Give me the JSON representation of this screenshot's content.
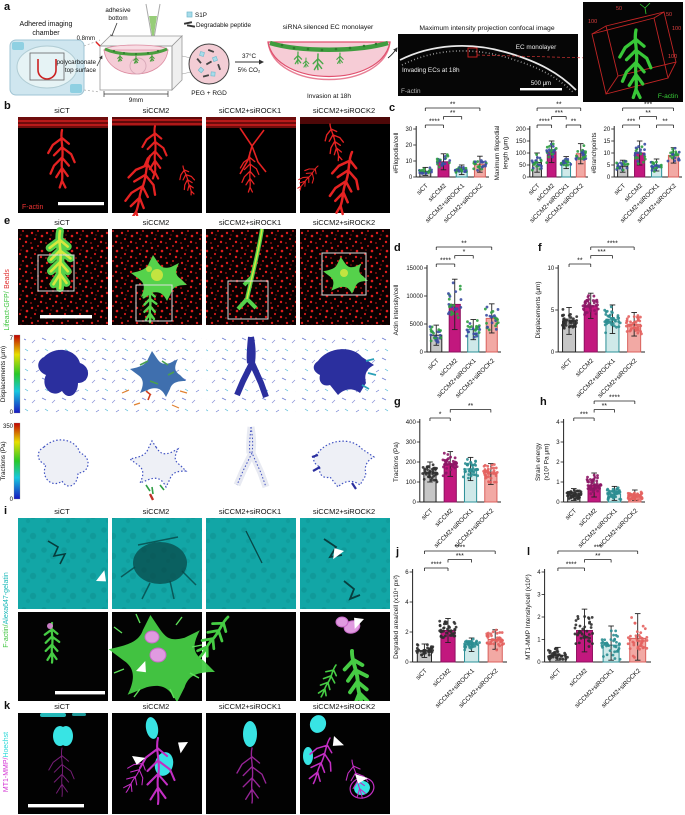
{
  "conditions": [
    "siCT",
    "siCCM2",
    "siCCM2+siROCK1",
    "siCCM2+siROCK2"
  ],
  "panel_letters": {
    "a": "a",
    "b": "b",
    "c": "c",
    "d": "d",
    "e": "e",
    "f": "f",
    "g": "g",
    "h": "h",
    "i": "i",
    "j": "j",
    "k": "k",
    "l": "l"
  },
  "style": {
    "bar_colors": [
      "#c6c6c6",
      "#c2187e",
      "#cfe9e9",
      "#f2a9a4"
    ],
    "bar_borders": [
      "#222222",
      "#8f1160",
      "#2a8f96",
      "#d9605c"
    ],
    "mixed_dot_colors": [
      "#2f9e44",
      "#3b4ea3"
    ],
    "group_dot_colors": [
      "#2f2f2f",
      "#8d1766",
      "#2c8e92",
      "#e4625f"
    ]
  },
  "panels": {
    "a": {
      "chamber_line1": "Adhered imaging",
      "chamber_line2": "chamber",
      "adhesive_line1": "adhesive",
      "adhesive_line2": "bottom",
      "thickness": "0.8mm",
      "poly_line1": "polycarbonate",
      "poly_line2": "top surface",
      "width_label": "9mm",
      "legend_s1p": "S1P",
      "legend_peptide": "Degradable peptide",
      "peg_rgd": "PEG + RGD",
      "temp": "37°C",
      "co2": "5% CO₂",
      "monolayer_caption": "siRNA silenced EC monolayer",
      "invasion_caption": "Invasion at 18h",
      "mip_caption": "Maximum intensity projection confocal image",
      "ec_monolayer": "EC monolayer",
      "invading": "Invading ECs at 18h",
      "factin": "F-actin",
      "scalebar_text": "500 μm",
      "cube": {
        "t1": "50",
        "t2": "100",
        "t3": "50",
        "t4": "100",
        "t5": "100",
        "factin": "F-actin"
      }
    },
    "b": {
      "stain": "F-actin"
    },
    "e": {
      "stain_left": "Lifeact-GFP/",
      "stain_right": "Beads",
      "colorbar_displacements": {
        "label": "Displacements (μm)",
        "max": "7",
        "min": "0"
      },
      "colorbar_tractions": {
        "label": "Tractions (Pa)",
        "max": "350",
        "min": "0"
      }
    },
    "i": {
      "stain_left": "F-actin/",
      "stain_right": "Alexa647-gelatin"
    },
    "k": {
      "stain_left": "MT1-MMP/",
      "stain_right": "Hoechst"
    }
  },
  "chart_data": [
    {
      "type": "bar",
      "name": "filopodia-per-cell",
      "categories": [
        "siCT",
        "siCCM2",
        "siCCM2+siROCK1",
        "siCCM2+siROCK2"
      ],
      "values": [
        3.5,
        9.5,
        4.5,
        8
      ],
      "errors": [
        2.5,
        5,
        3,
        5
      ],
      "ylim": [
        0,
        30
      ],
      "yticks": [
        0,
        10,
        20,
        30
      ],
      "ylabel_lines": [
        "#Filopodia/cell"
      ],
      "dot_colors": [
        [
          "#2f9e44",
          "#3b4ea3"
        ],
        [
          "#2f9e44",
          "#3b4ea3"
        ],
        [
          "#2f9e44",
          "#3b4ea3"
        ],
        [
          "#2f9e44",
          "#3b4ea3"
        ]
      ],
      "ndots": 22,
      "sig": [
        {
          "a": 0,
          "b": 1,
          "label": "****",
          "level": 0
        },
        {
          "a": 1,
          "b": 2,
          "label": "**",
          "level": 1
        },
        {
          "a": 0,
          "b": 3,
          "label": "**",
          "level": 2
        }
      ]
    },
    {
      "type": "bar",
      "name": "max-filopodial-length",
      "categories": [
        "siCT",
        "siCCM2",
        "siCCM2+siROCK1",
        "siCCM2+siROCK2"
      ],
      "values": [
        60,
        105,
        60,
        97
      ],
      "errors": [
        40,
        45,
        25,
        42
      ],
      "ylim": [
        0,
        200
      ],
      "yticks": [
        0,
        50,
        100,
        150,
        200
      ],
      "ylabel_lines": [
        "Maximum filopodial",
        "length (μm)"
      ],
      "dot_colors": [
        [
          "#2f9e44",
          "#3b4ea3"
        ],
        [
          "#2f9e44",
          "#3b4ea3"
        ],
        [
          "#2f9e44",
          "#3b4ea3"
        ],
        [
          "#2f9e44",
          "#3b4ea3"
        ]
      ],
      "ndots": 24,
      "sig": [
        {
          "a": 0,
          "b": 1,
          "label": "****",
          "level": 0
        },
        {
          "a": 1,
          "b": 2,
          "label": "***",
          "level": 1
        },
        {
          "a": 2,
          "b": 3,
          "label": "**",
          "level": 0
        },
        {
          "a": 0,
          "b": 3,
          "label": "**",
          "level": 2
        }
      ]
    },
    {
      "type": "bar",
      "name": "branchpoints",
      "categories": [
        "siCT",
        "siCCM2",
        "siCCM2+siROCK1",
        "siCCM2+siROCK2"
      ],
      "values": [
        4.5,
        10,
        5,
        9
      ],
      "errors": [
        2.5,
        5,
        2.5,
        3.2
      ],
      "ylim": [
        0,
        20
      ],
      "yticks": [
        0,
        5,
        10,
        15,
        20
      ],
      "ylabel_lines": [
        "#Branchpoints"
      ],
      "dot_colors": [
        [
          "#2f9e44",
          "#3b4ea3"
        ],
        [
          "#2f9e44",
          "#3b4ea3"
        ],
        [
          "#2f9e44",
          "#3b4ea3"
        ],
        [
          "#2f9e44",
          "#3b4ea3"
        ]
      ],
      "ndots": 22,
      "sig": [
        {
          "a": 0,
          "b": 1,
          "label": "***",
          "level": 0
        },
        {
          "a": 1,
          "b": 2,
          "label": "**",
          "level": 1
        },
        {
          "a": 2,
          "b": 3,
          "label": "**",
          "level": 0
        },
        {
          "a": 0,
          "b": 3,
          "label": "***",
          "level": 2
        }
      ]
    },
    {
      "type": "bar",
      "name": "actin-intensity",
      "categories": [
        "siCT",
        "siCCM2",
        "siCCM2+siROCK1",
        "siCCM2+siROCK2"
      ],
      "values": [
        3000,
        8500,
        4000,
        6000
      ],
      "errors": [
        1800,
        4500,
        1800,
        2600
      ],
      "ylim": [
        0,
        15000
      ],
      "yticks": [
        0,
        5000,
        10000,
        15000
      ],
      "ylabel_lines": [
        "Actin intensity/cell"
      ],
      "dot_colors": [
        [
          "#2f9e44",
          "#3b4ea3"
        ],
        [
          "#2f9e44",
          "#3b4ea3"
        ],
        [
          "#2f9e44",
          "#3b4ea3"
        ],
        [
          "#2f9e44",
          "#3b4ea3"
        ]
      ],
      "ndots": 26,
      "sig": [
        {
          "a": 0,
          "b": 1,
          "label": "****",
          "level": 0
        },
        {
          "a": 1,
          "b": 2,
          "label": "*",
          "level": 1
        },
        {
          "a": 0,
          "b": 3,
          "label": "**",
          "level": 2
        }
      ]
    },
    {
      "type": "bar",
      "name": "displacements",
      "categories": [
        "siCT",
        "siCCM2",
        "siCCM2+siROCK1",
        "siCCM2+siROCK2"
      ],
      "values": [
        3.7,
        5.5,
        3.9,
        3.3
      ],
      "errors": [
        1.6,
        1.5,
        1.7,
        1.4
      ],
      "ylim": [
        0,
        10
      ],
      "yticks": [
        0,
        5,
        10
      ],
      "ylabel_lines": [
        "Displacements (μm)"
      ],
      "dot_colors": [
        "#2f2f2f",
        "#8d1766",
        "#2c8e92",
        "#e4625f"
      ],
      "ndots": 40,
      "sig": [
        {
          "a": 0,
          "b": 1,
          "label": "**",
          "level": 0
        },
        {
          "a": 1,
          "b": 2,
          "label": "***",
          "level": 1
        },
        {
          "a": 1,
          "b": 3,
          "label": "****",
          "level": 2
        }
      ]
    },
    {
      "type": "bar",
      "name": "tractions",
      "categories": [
        "siCT",
        "siCCM2",
        "siCCM2+siROCK1",
        "siCCM2+siROCK2"
      ],
      "values": [
        150,
        190,
        165,
        140
      ],
      "errors": [
        50,
        62,
        58,
        52
      ],
      "ylim": [
        0,
        400
      ],
      "yticks": [
        0,
        100,
        200,
        300,
        400
      ],
      "ylabel_lines": [
        "Tractions (Pa)"
      ],
      "dot_colors": [
        "#2f2f2f",
        "#8d1766",
        "#2c8e92",
        "#e4625f"
      ],
      "ndots": 40,
      "sig": [
        {
          "a": 0,
          "b": 1,
          "label": "*",
          "level": 0
        },
        {
          "a": 1,
          "b": 3,
          "label": "**",
          "level": 1
        }
      ]
    },
    {
      "type": "bar",
      "name": "strain-energy",
      "categories": [
        "siCT",
        "siCCM2",
        "siCCM2+siROCK1",
        "siCCM2+siROCK2"
      ],
      "values": [
        0.35,
        0.85,
        0.4,
        0.3
      ],
      "errors": [
        0.32,
        0.6,
        0.38,
        0.3
      ],
      "ylim": [
        0,
        4
      ],
      "yticks": [
        0,
        1,
        2,
        3,
        4
      ],
      "ylabel_lines": [
        "Strain energy",
        "(x10³ Pa μm)"
      ],
      "dot_colors": [
        "#2f2f2f",
        "#8d1766",
        "#2c8e92",
        "#e4625f"
      ],
      "ndots": 45,
      "sig": [
        {
          "a": 0,
          "b": 1,
          "label": "***",
          "level": 0
        },
        {
          "a": 1,
          "b": 2,
          "label": "**",
          "level": 1
        },
        {
          "a": 1,
          "b": 3,
          "label": "****",
          "level": 2
        }
      ]
    },
    {
      "type": "bar",
      "name": "degraded-area",
      "categories": [
        "siCT",
        "siCCM2",
        "siCCM2+siROCK1",
        "siCCM2+siROCK2"
      ],
      "values": [
        0.75,
        2.1,
        1.15,
        1.5
      ],
      "errors": [
        0.45,
        0.8,
        0.45,
        0.65
      ],
      "ylim": [
        0,
        6
      ],
      "yticks": [
        0,
        2,
        4,
        6
      ],
      "ylabel_lines": [
        "Degraded area/cell (x10⁴ px²)"
      ],
      "dot_colors": [
        "#2f2f2f",
        "#2f2f2f",
        "#2c8e92",
        "#e4625f"
      ],
      "ndots": 40,
      "sig": [
        {
          "a": 0,
          "b": 1,
          "label": "****",
          "level": 0
        },
        {
          "a": 1,
          "b": 2,
          "label": "***",
          "level": 1
        },
        {
          "a": 0,
          "b": 3,
          "label": "****",
          "level": 2
        }
      ]
    },
    {
      "type": "bar",
      "name": "mt1-mmp-intensity",
      "categories": [
        "siCT",
        "siCCM2",
        "siCCM2+siROCK1",
        "siCCM2+siROCK2"
      ],
      "values": [
        0.3,
        1.4,
        0.75,
        1.05
      ],
      "errors": [
        0.35,
        0.95,
        0.85,
        1.1
      ],
      "ylim": [
        0,
        4
      ],
      "yticks": [
        0,
        1,
        2,
        3,
        4
      ],
      "ylabel_lines": [
        "MT1-MMP Intensity/cell (x10⁶)"
      ],
      "dot_colors": [
        "#2f2f2f",
        "#2f2f2f",
        "#2c8e92",
        "#e4625f"
      ],
      "ndots": 38,
      "sig": [
        {
          "a": 0,
          "b": 1,
          "label": "****",
          "level": 0
        },
        {
          "a": 1,
          "b": 2,
          "label": "**",
          "level": 1
        },
        {
          "a": 0,
          "b": 3,
          "label": "***",
          "level": 2
        }
      ]
    }
  ]
}
